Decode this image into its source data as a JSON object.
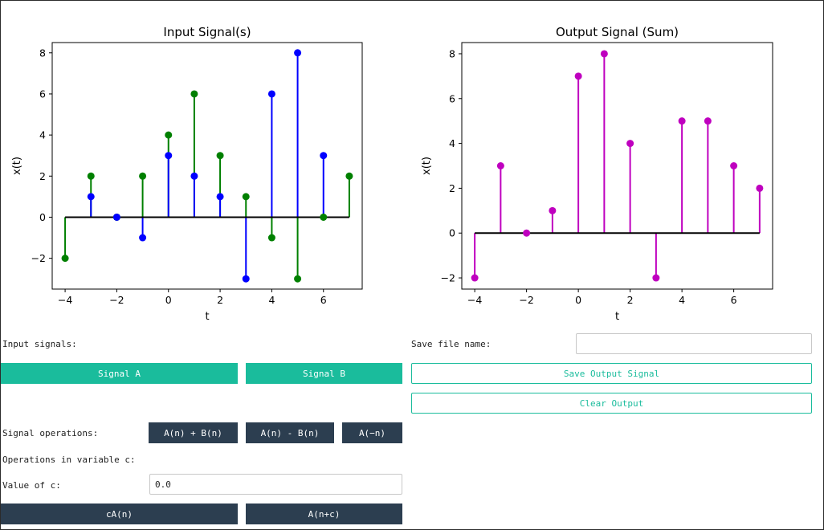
{
  "input_plot": {
    "title": "Input Signal(s)",
    "xlabel": "t",
    "ylabel": "x(t)"
  },
  "output_plot": {
    "title": "Output Signal (Sum)",
    "xlabel": "t",
    "ylabel": "x(t)"
  },
  "controls": {
    "input_signals_label": "Input signals:",
    "signal_a_label": "Signal A",
    "signal_b_label": "Signal B",
    "save_file_label": "Save file name:",
    "save_file_value": "",
    "save_button": "Save Output Signal",
    "clear_button": "Clear Output",
    "signal_ops_label": "Signal operations:",
    "op_add": "A(n) + B(n)",
    "op_sub": "A(n) - B(n)",
    "op_rev": "A(−n)",
    "var_ops_label": "Operations in variable c:",
    "c_label": "Value of c:",
    "c_value": "0.0",
    "op_scale": "cA(n)",
    "op_shift": "A(n+c)"
  },
  "colors": {
    "signal_a": "#0000ff",
    "signal_b": "#008000",
    "output": "#bf00bf",
    "teal": "#1abc9c",
    "dark": "#2c3e50"
  },
  "chart_data": [
    {
      "type": "stem",
      "title": "Input Signal(s)",
      "xlabel": "t",
      "ylabel": "x(t)",
      "xlim": [
        -4.5,
        7.5
      ],
      "ylim": [
        -3.5,
        8.5
      ],
      "xticks": [
        -4,
        -2,
        0,
        2,
        4,
        6
      ],
      "yticks": [
        -2,
        0,
        2,
        4,
        6,
        8
      ],
      "baseline": [
        -4,
        7
      ],
      "series": [
        {
          "color": "#008000",
          "x": [
            -4,
            -3,
            -2,
            -1,
            0,
            1,
            2,
            3,
            4,
            5,
            6,
            7
          ],
          "values": [
            -2,
            2,
            0,
            2,
            4,
            6,
            3,
            1,
            -1,
            -3,
            0,
            2
          ]
        },
        {
          "color": "#0000ff",
          "x": [
            -3,
            -2,
            -1,
            0,
            1,
            2,
            3,
            4,
            5,
            6
          ],
          "values": [
            1,
            0,
            -1,
            3,
            2,
            1,
            -3,
            6,
            8,
            3
          ]
        }
      ]
    },
    {
      "type": "stem",
      "title": "Output Signal (Sum)",
      "xlabel": "t",
      "ylabel": "x(t)",
      "xlim": [
        -4.5,
        7.5
      ],
      "ylim": [
        -2.5,
        8.5
      ],
      "xticks": [
        -4,
        -2,
        0,
        2,
        4,
        6
      ],
      "yticks": [
        -2,
        0,
        2,
        4,
        6,
        8
      ],
      "baseline": [
        -4,
        7
      ],
      "series": [
        {
          "color": "#bf00bf",
          "x": [
            -4,
            -3,
            -2,
            -1,
            0,
            1,
            2,
            3,
            4,
            5,
            6,
            7
          ],
          "values": [
            -2,
            3,
            0,
            1,
            7,
            8,
            4,
            -2,
            5,
            5,
            3,
            2
          ]
        }
      ]
    }
  ]
}
